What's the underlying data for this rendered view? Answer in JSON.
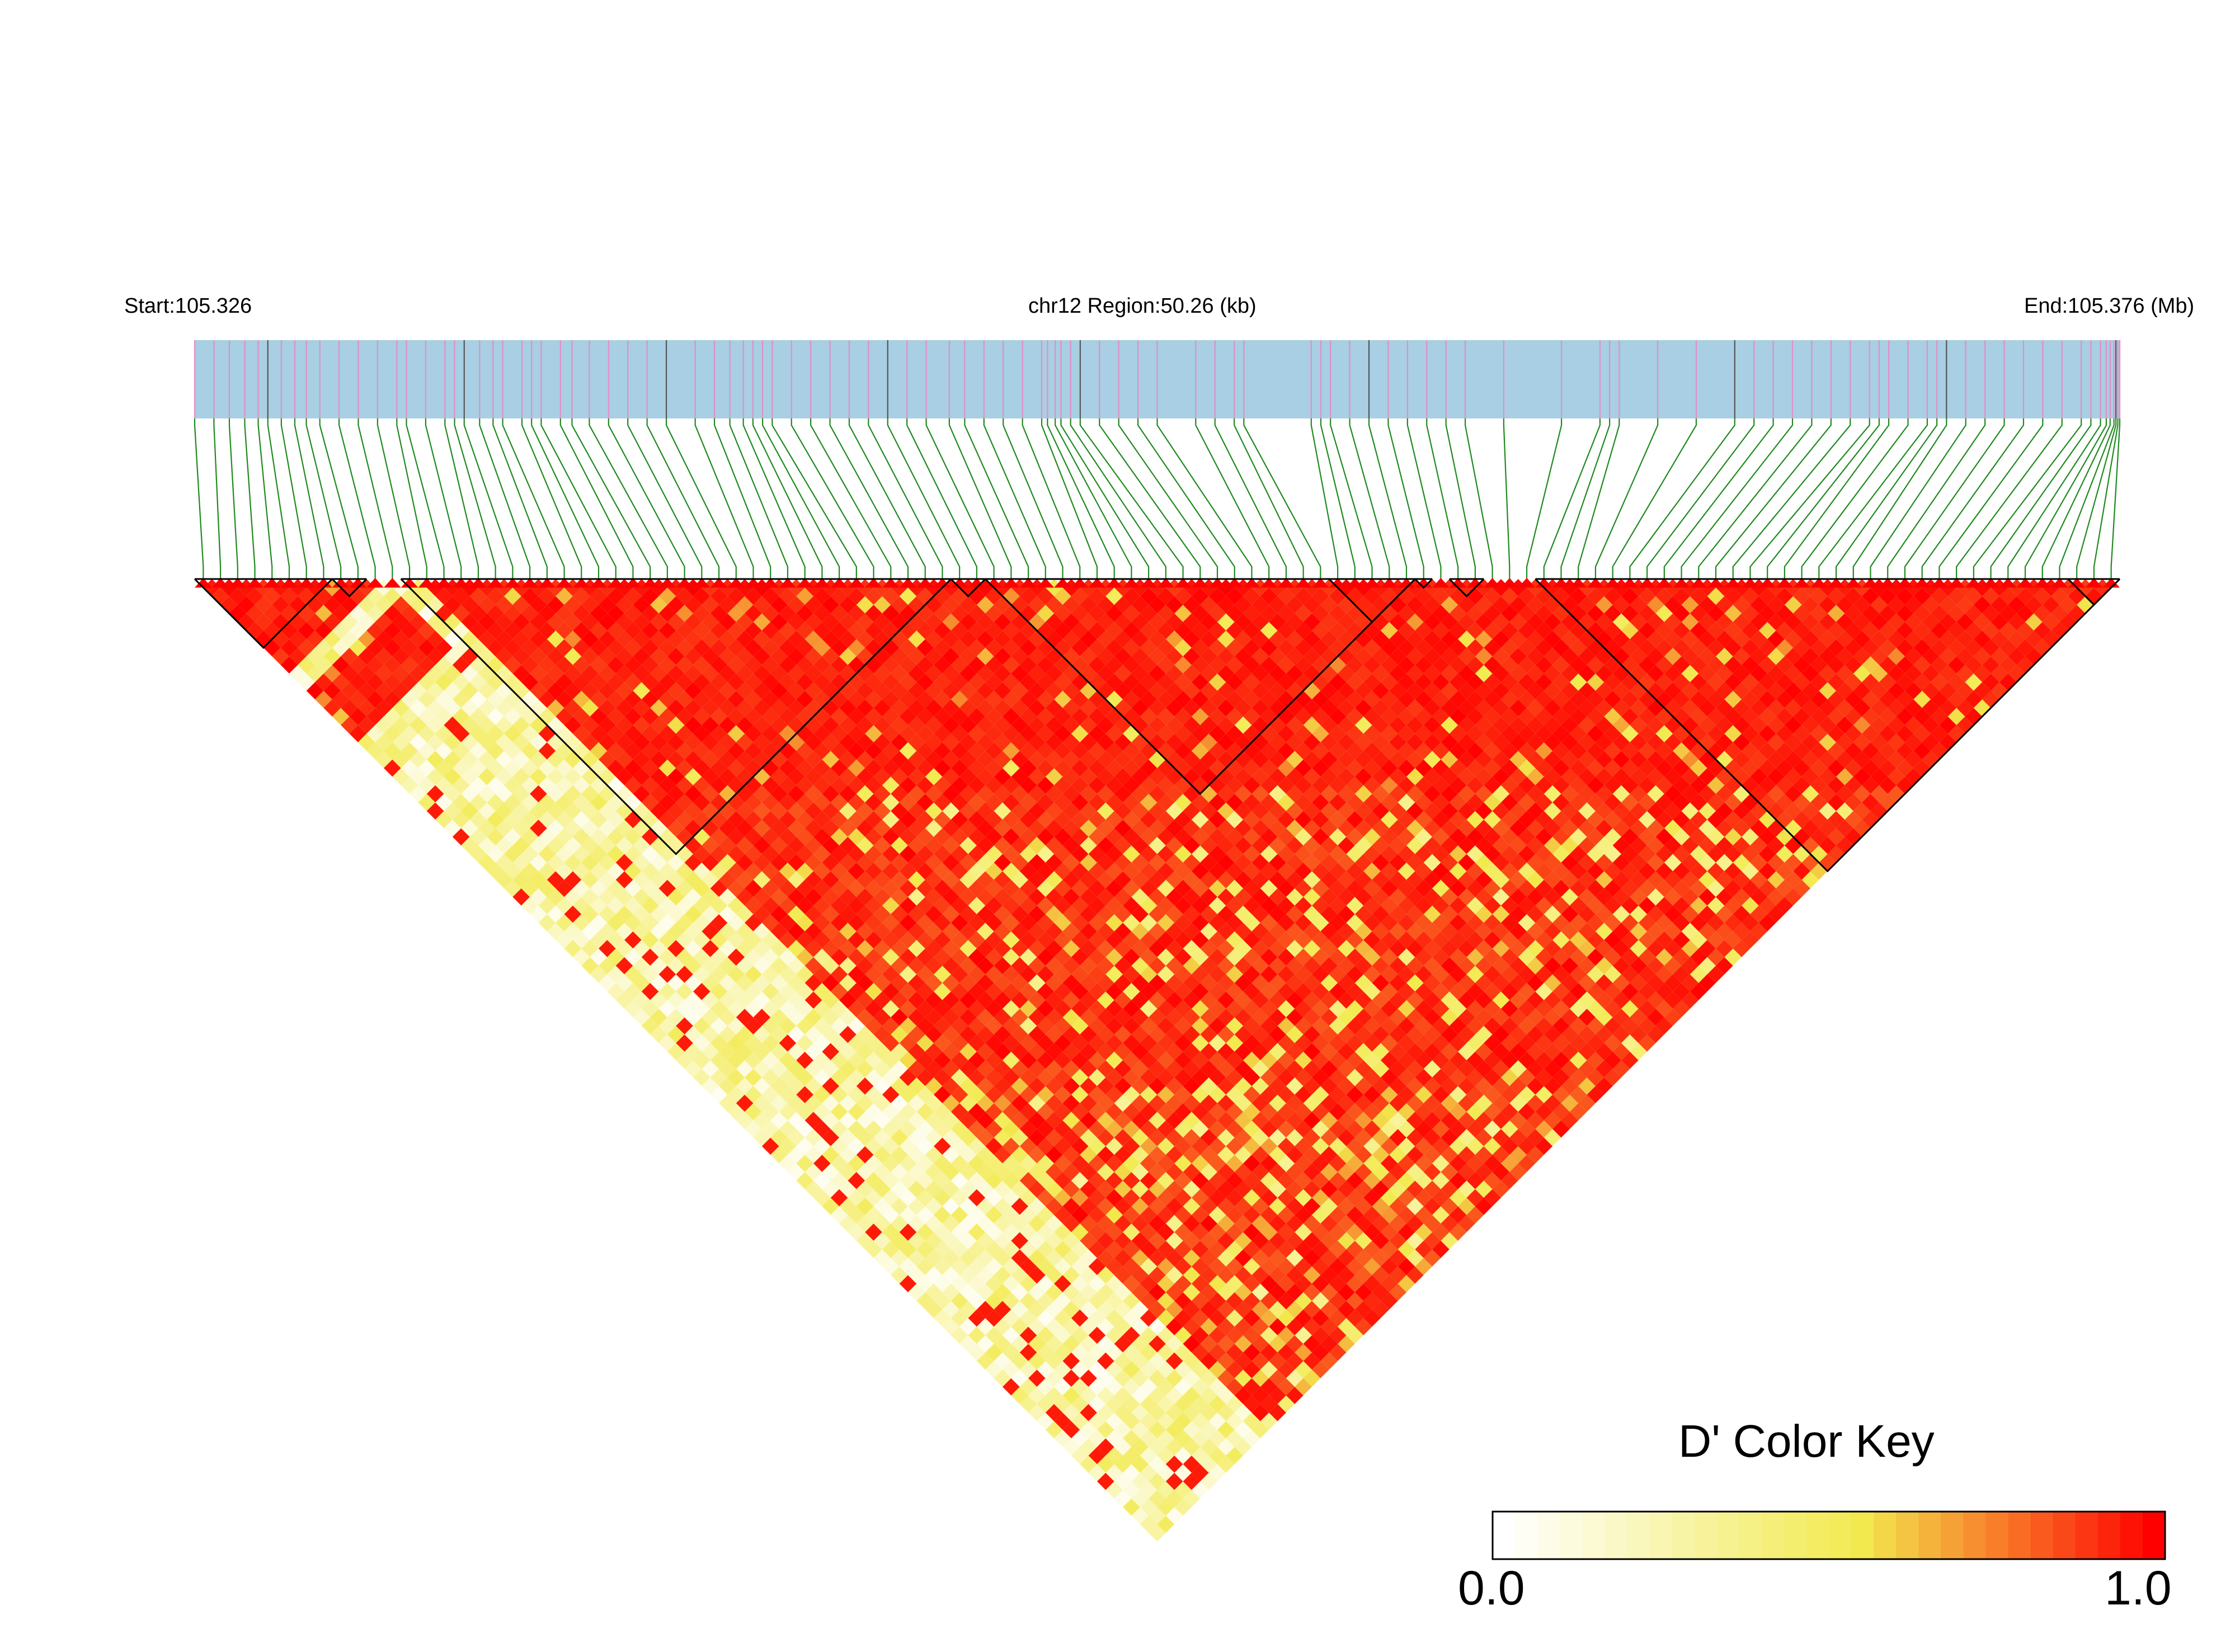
{
  "header": {
    "start_label": "Start:105.326",
    "region_label": "chr12 Region:50.26 (kb)",
    "end_label": "End:105.376 (Mb)"
  },
  "colors": {
    "track_background": "#a8cfe3",
    "snp_tick": "#e28fc6",
    "snp_tick_dark": "#555555",
    "connector": "#1f8a1f",
    "high": "#ff0000",
    "mid": "#f0e64c",
    "low": "#ffffff",
    "block_outline": "#000000"
  },
  "chart_data": {
    "type": "heatmap",
    "title": "",
    "description_axes": "LD triangle of pairwise D' across SNPs in region",
    "chromosome": "chr12",
    "start_mb": 105.326,
    "end_mb": 105.376,
    "region_kb": 50.26,
    "n_snps": 112,
    "snp_positions_fraction": [
      0.0,
      0.01,
      0.018,
      0.026,
      0.033,
      0.038,
      0.045,
      0.052,
      0.058,
      0.065,
      0.075,
      0.085,
      0.095,
      0.105,
      0.11,
      0.12,
      0.13,
      0.135,
      0.14,
      0.148,
      0.155,
      0.16,
      0.17,
      0.175,
      0.18,
      0.19,
      0.196,
      0.205,
      0.215,
      0.225,
      0.235,
      0.245,
      0.26,
      0.27,
      0.278,
      0.285,
      0.29,
      0.295,
      0.3,
      0.31,
      0.32,
      0.33,
      0.34,
      0.35,
      0.36,
      0.37,
      0.38,
      0.392,
      0.4,
      0.41,
      0.42,
      0.43,
      0.44,
      0.443,
      0.447,
      0.45,
      0.455,
      0.46,
      0.47,
      0.48,
      0.49,
      0.5,
      0.52,
      0.53,
      0.54,
      0.545,
      0.58,
      0.585,
      0.59,
      0.6,
      0.61,
      0.62,
      0.63,
      0.64,
      0.65,
      0.66,
      0.68,
      0.71,
      0.73,
      0.735,
      0.74,
      0.76,
      0.78,
      0.8,
      0.81,
      0.82,
      0.83,
      0.84,
      0.85,
      0.86,
      0.87,
      0.875,
      0.88,
      0.89,
      0.9,
      0.905,
      0.91,
      0.92,
      0.93,
      0.94,
      0.95,
      0.96,
      0.97,
      0.98,
      0.985,
      0.99,
      0.993,
      0.995,
      0.997,
      0.998,
      0.999,
      1.0
    ],
    "ld_blocks": [
      {
        "from": 0,
        "to": 8
      },
      {
        "from": 8,
        "to": 10
      },
      {
        "from": 12,
        "to": 44
      },
      {
        "from": 44,
        "to": 46
      },
      {
        "from": 46,
        "to": 71
      },
      {
        "from": 66,
        "to": 71
      },
      {
        "from": 71,
        "to": 72
      },
      {
        "from": 73,
        "to": 75
      },
      {
        "from": 78,
        "to": 112
      },
      {
        "from": 109,
        "to": 112
      }
    ],
    "color_key": {
      "title": "D' Color Key",
      "min_label": "0.0",
      "max_label": "1.0",
      "min": 0.0,
      "max": 1.0,
      "stops": [
        "#ffffff",
        "#f2ea4e",
        "#ff0000"
      ]
    }
  }
}
